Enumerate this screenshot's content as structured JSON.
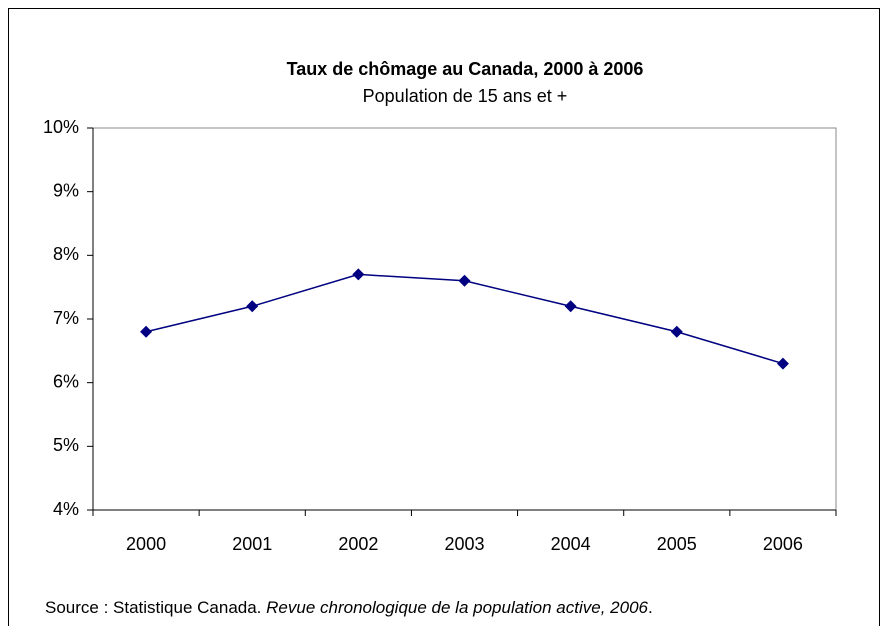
{
  "chart_data": {
    "type": "line",
    "title": "Taux de chômage au Canada, 2000 à 2006",
    "subtitle": "Population de 15 ans et +",
    "categories": [
      "2000",
      "2001",
      "2002",
      "2003",
      "2004",
      "2005",
      "2006"
    ],
    "values": [
      6.8,
      7.2,
      7.7,
      7.6,
      7.2,
      6.8,
      6.3
    ],
    "color": "#000080",
    "ylim": [
      4,
      10
    ],
    "yticks": [
      {
        "value": 4,
        "label": "4%"
      },
      {
        "value": 5,
        "label": "5%"
      },
      {
        "value": 6,
        "label": "6%"
      },
      {
        "value": 7,
        "label": "7%"
      },
      {
        "value": 8,
        "label": "8%"
      },
      {
        "value": 9,
        "label": "9%"
      },
      {
        "value": 10,
        "label": "10%"
      }
    ],
    "grid": false,
    "source": [
      "Source : Statistique Canada. ",
      "Revue chronologique de la population active, 2006",
      "."
    ]
  }
}
